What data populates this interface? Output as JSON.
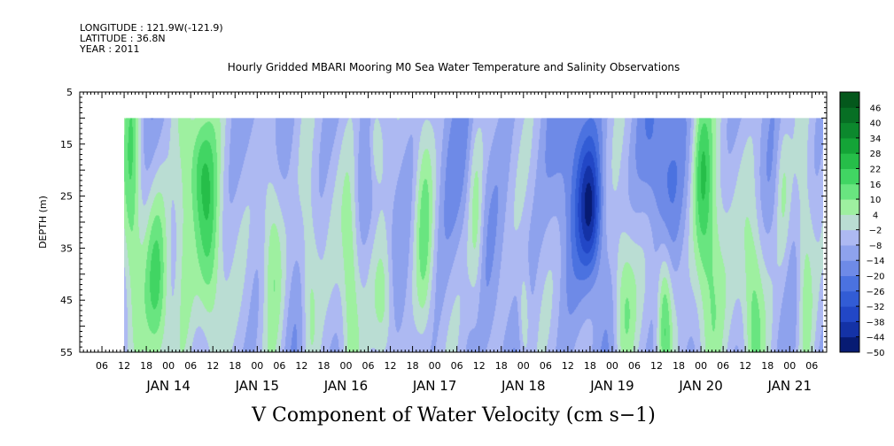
{
  "header": {
    "longitude": "LONGITUDE : 121.9W(-121.9)",
    "latitude": "LATITUDE : 36.8N",
    "year": "YEAR : 2011"
  },
  "chart_data": {
    "type": "heatmap",
    "title": "Hourly Gridded MBARI Mooring M0 Sea Water Temperature and Salinity Observations",
    "xlabel": "V Component of Water Velocity (cm s−1)",
    "ylabel": "DEPTH (m)",
    "ylim": [
      5,
      55
    ],
    "y_inverted": true,
    "y_ticks": [
      5,
      15,
      25,
      35,
      45,
      55
    ],
    "xlim": [
      "2011-01-13T00:00",
      "2011-01-21T10:00"
    ],
    "data_range": {
      "time_start": "2011-01-13T12:00",
      "time_end": "2011-01-21T09:00",
      "depth_min": 10,
      "depth_max": 55
    },
    "x_hour_labels": [
      {
        "t": "2011-01-13T06:00",
        "label": "06"
      },
      {
        "t": "2011-01-13T12:00",
        "label": "12"
      },
      {
        "t": "2011-01-13T18:00",
        "label": "18"
      },
      {
        "t": "2011-01-14T00:00",
        "label": "00"
      },
      {
        "t": "2011-01-14T06:00",
        "label": "06"
      },
      {
        "t": "2011-01-14T12:00",
        "label": "12"
      },
      {
        "t": "2011-01-14T18:00",
        "label": "18"
      },
      {
        "t": "2011-01-15T00:00",
        "label": "00"
      },
      {
        "t": "2011-01-15T06:00",
        "label": "06"
      },
      {
        "t": "2011-01-15T12:00",
        "label": "12"
      },
      {
        "t": "2011-01-15T18:00",
        "label": "18"
      },
      {
        "t": "2011-01-16T00:00",
        "label": "00"
      },
      {
        "t": "2011-01-16T06:00",
        "label": "06"
      },
      {
        "t": "2011-01-16T12:00",
        "label": "12"
      },
      {
        "t": "2011-01-16T18:00",
        "label": "18"
      },
      {
        "t": "2011-01-17T00:00",
        "label": "00"
      },
      {
        "t": "2011-01-17T06:00",
        "label": "06"
      },
      {
        "t": "2011-01-17T12:00",
        "label": "12"
      },
      {
        "t": "2011-01-17T18:00",
        "label": "18"
      },
      {
        "t": "2011-01-18T00:00",
        "label": "00"
      },
      {
        "t": "2011-01-18T06:00",
        "label": "06"
      },
      {
        "t": "2011-01-18T12:00",
        "label": "12"
      },
      {
        "t": "2011-01-18T18:00",
        "label": "18"
      },
      {
        "t": "2011-01-19T00:00",
        "label": "00"
      },
      {
        "t": "2011-01-19T06:00",
        "label": "06"
      },
      {
        "t": "2011-01-19T12:00",
        "label": "12"
      },
      {
        "t": "2011-01-19T18:00",
        "label": "18"
      },
      {
        "t": "2011-01-20T00:00",
        "label": "00"
      },
      {
        "t": "2011-01-20T06:00",
        "label": "06"
      },
      {
        "t": "2011-01-20T12:00",
        "label": "12"
      },
      {
        "t": "2011-01-20T18:00",
        "label": "18"
      },
      {
        "t": "2011-01-21T00:00",
        "label": "00"
      },
      {
        "t": "2011-01-21T06:00",
        "label": "06"
      }
    ],
    "x_day_labels": [
      {
        "t": "2011-01-14T00:00",
        "label": "JAN 14"
      },
      {
        "t": "2011-01-15T00:00",
        "label": "JAN 15"
      },
      {
        "t": "2011-01-16T00:00",
        "label": "JAN 16"
      },
      {
        "t": "2011-01-17T00:00",
        "label": "JAN 17"
      },
      {
        "t": "2011-01-18T00:00",
        "label": "JAN 18"
      },
      {
        "t": "2011-01-19T00:00",
        "label": "JAN 19"
      },
      {
        "t": "2011-01-20T00:00",
        "label": "JAN 20"
      },
      {
        "t": "2011-01-21T00:00",
        "label": "JAN 21"
      }
    ],
    "colorbar": {
      "min": -50,
      "max": 52,
      "step": 6,
      "labels": [
        46,
        40,
        34,
        28,
        22,
        16,
        10,
        4,
        -2,
        -8,
        -14,
        -20,
        -26,
        -32,
        -38,
        -44,
        -50
      ],
      "color_stops": [
        {
          "v": -50,
          "c": "#00105a"
        },
        {
          "v": -38,
          "c": "#1a3dbf"
        },
        {
          "v": -26,
          "c": "#3a66dc"
        },
        {
          "v": -14,
          "c": "#7f96ea"
        },
        {
          "v": -2,
          "c": "#bcc4f5"
        },
        {
          "v": 4,
          "c": "#b8f5b0"
        },
        {
          "v": 16,
          "c": "#4fe070"
        },
        {
          "v": 28,
          "c": "#18b23c"
        },
        {
          "v": 40,
          "c": "#087a28"
        },
        {
          "v": 52,
          "c": "#034d18"
        }
      ]
    },
    "features": [
      {
        "t": "2011-01-13T14:00",
        "depth": 22,
        "value": 14,
        "dt": 2.5,
        "dd": 28
      },
      {
        "t": "2011-01-13T21:00",
        "depth": 42,
        "value": 16,
        "dt": 3.5,
        "dd": 18
      },
      {
        "t": "2011-01-14T04:00",
        "depth": 28,
        "value": 10,
        "dt": 3,
        "dd": 30
      },
      {
        "t": "2011-01-14T11:00",
        "depth": 35,
        "value": 16,
        "dt": 3.5,
        "dd": 24
      },
      {
        "t": "2011-01-14T08:00",
        "depth": 18,
        "value": 8,
        "dt": 3,
        "dd": 12
      },
      {
        "t": "2011-01-15T04:00",
        "depth": 35,
        "value": 12,
        "dt": 3,
        "dd": 20
      },
      {
        "t": "2011-01-15T14:00",
        "depth": 42,
        "value": 8,
        "dt": 2.5,
        "dd": 20
      },
      {
        "t": "2011-01-16T01:00",
        "depth": 40,
        "value": 10,
        "dt": 2.5,
        "dd": 22
      },
      {
        "t": "2011-01-16T08:00",
        "depth": 14,
        "value": 8,
        "dt": 2,
        "dd": 9
      },
      {
        "t": "2011-01-16T10:00",
        "depth": 46,
        "value": 10,
        "dt": 3,
        "dd": 14
      },
      {
        "t": "2011-01-16T21:00",
        "depth": 32,
        "value": 8,
        "dt": 2.5,
        "dd": 24
      },
      {
        "t": "2011-01-17T11:00",
        "depth": 30,
        "value": 6,
        "dt": 2,
        "dd": 20
      },
      {
        "t": "2011-01-17T04:00",
        "depth": 20,
        "value": -14,
        "dt": 5,
        "dd": 18
      },
      {
        "t": "2011-01-18T00:00",
        "depth": 48,
        "value": 6,
        "dt": 1.5,
        "dd": 10
      },
      {
        "t": "2011-01-18T18:00",
        "depth": 28,
        "value": -34,
        "dt": 3,
        "dd": 12
      },
      {
        "t": "2011-01-18T14:00",
        "depth": 20,
        "value": -20,
        "dt": 6,
        "dd": 20
      },
      {
        "t": "2011-01-19T12:00",
        "depth": 18,
        "value": -22,
        "dt": 5,
        "dd": 16
      },
      {
        "t": "2011-01-19T03:00",
        "depth": 45,
        "value": 10,
        "dt": 3,
        "dd": 16
      },
      {
        "t": "2011-01-19T14:00",
        "depth": 48,
        "value": 16,
        "dt": 2,
        "dd": 14
      },
      {
        "t": "2011-01-20T02:00",
        "depth": 40,
        "value": 16,
        "dt": 4,
        "dd": 26
      },
      {
        "t": "2011-01-20T00:00",
        "depth": 18,
        "value": 8,
        "dt": 2.5,
        "dd": 16
      },
      {
        "t": "2011-01-20T14:00",
        "depth": 45,
        "value": 12,
        "dt": 3,
        "dd": 20
      },
      {
        "t": "2011-01-21T04:00",
        "depth": 40,
        "value": 10,
        "dt": 2.5,
        "dd": 24
      },
      {
        "t": "2011-01-20T22:00",
        "depth": 22,
        "value": 4,
        "dt": 2,
        "dd": 16
      }
    ]
  }
}
